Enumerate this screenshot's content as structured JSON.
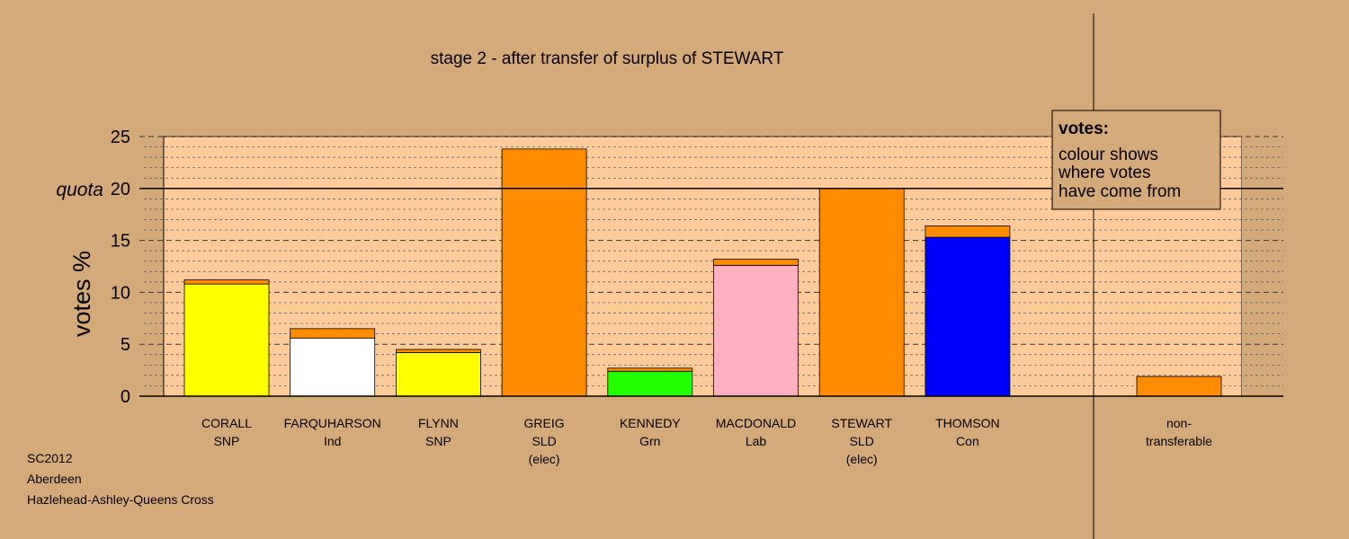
{
  "chart_data": {
    "type": "bar",
    "stacked": true,
    "title": "stage 2 - after transfer of surplus of STEWART",
    "ylabel": "votes %",
    "ylim": [
      0,
      25
    ],
    "yticks": [
      0,
      5,
      10,
      15,
      20,
      25
    ],
    "quota": 20,
    "quota_label": "quota",
    "grid": true,
    "candidates": [
      {
        "name": "CORALL",
        "party": "SNP",
        "note": "",
        "own": 10.8,
        "transfer": 0.4,
        "color": "#ffff00"
      },
      {
        "name": "FARQUHARSON",
        "party": "Ind",
        "note": "",
        "own": 5.6,
        "transfer": 0.9,
        "color": "#ffffff"
      },
      {
        "name": "FLYNN",
        "party": "SNP",
        "note": "",
        "own": 4.2,
        "transfer": 0.3,
        "color": "#ffff00"
      },
      {
        "name": "GREIG",
        "party": "SLD",
        "note": "(elec)",
        "own": 23.8,
        "transfer": 0.0,
        "color": "#ff8c00"
      },
      {
        "name": "KENNEDY",
        "party": "Grn",
        "note": "",
        "own": 2.4,
        "transfer": 0.3,
        "color": "#22ff00"
      },
      {
        "name": "MACDONALD",
        "party": "Lab",
        "note": "",
        "own": 12.6,
        "transfer": 0.6,
        "color": "#ffb0c0"
      },
      {
        "name": "STEWART",
        "party": "SLD",
        "note": "(elec)",
        "own": 20.0,
        "transfer": 0.0,
        "color": "#ff8c00"
      },
      {
        "name": "THOMSON",
        "party": "Con",
        "note": "",
        "own": 15.3,
        "transfer": 1.1,
        "color": "#0000ff"
      }
    ],
    "nontransferable": {
      "line1": "non-",
      "line2": "transferable",
      "value": 1.9,
      "color": "#ff8c00"
    },
    "transfer_color": "#ff8c00",
    "legend": {
      "position": "top-right",
      "title": "votes:",
      "lines": [
        "colour shows",
        "where votes",
        "have come from"
      ]
    }
  },
  "footer": {
    "line1": "SC2012",
    "line2": "Aberdeen",
    "line3": "Hazlehead-Ashley-Queens Cross"
  }
}
